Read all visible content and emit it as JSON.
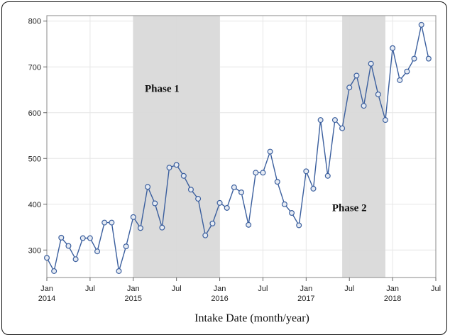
{
  "chart_data": {
    "type": "line",
    "xlabel": "Intake Date (month/year)",
    "ylabel": "",
    "ylim": [
      240,
      812
    ],
    "y_ticks": [
      300,
      400,
      500,
      600,
      700,
      800
    ],
    "x_start": "2014-01",
    "x_end": "2018-07",
    "x_ticks": [
      {
        "date": "2014-01",
        "label": "Jan",
        "year": "2014"
      },
      {
        "date": "2014-07",
        "label": "Jul",
        "year": ""
      },
      {
        "date": "2015-01",
        "label": "Jan",
        "year": "2015"
      },
      {
        "date": "2015-07",
        "label": "Jul",
        "year": ""
      },
      {
        "date": "2016-01",
        "label": "Jan",
        "year": "2016"
      },
      {
        "date": "2016-07",
        "label": "Jul",
        "year": ""
      },
      {
        "date": "2017-01",
        "label": "Jan",
        "year": "2017"
      },
      {
        "date": "2017-07",
        "label": "Jul",
        "year": ""
      },
      {
        "date": "2018-01",
        "label": "Jan",
        "year": "2018"
      },
      {
        "date": "2018-07",
        "label": "Jul",
        "year": ""
      }
    ],
    "grid": true,
    "series": [
      {
        "color": "#3b5f9e",
        "points": [
          {
            "x": "2014-01",
            "y": 283
          },
          {
            "x": "2014-02",
            "y": 254
          },
          {
            "x": "2014-03",
            "y": 327
          },
          {
            "x": "2014-04",
            "y": 309
          },
          {
            "x": "2014-05",
            "y": 280
          },
          {
            "x": "2014-06",
            "y": 326
          },
          {
            "x": "2014-07",
            "y": 326
          },
          {
            "x": "2014-08",
            "y": 297
          },
          {
            "x": "2014-09",
            "y": 360
          },
          {
            "x": "2014-10",
            "y": 360
          },
          {
            "x": "2014-11",
            "y": 254
          },
          {
            "x": "2014-12",
            "y": 308
          },
          {
            "x": "2015-01",
            "y": 372
          },
          {
            "x": "2015-02",
            "y": 348
          },
          {
            "x": "2015-03",
            "y": 438
          },
          {
            "x": "2015-04",
            "y": 402
          },
          {
            "x": "2015-05",
            "y": 349
          },
          {
            "x": "2015-06",
            "y": 480
          },
          {
            "x": "2015-07",
            "y": 486
          },
          {
            "x": "2015-08",
            "y": 462
          },
          {
            "x": "2015-09",
            "y": 432
          },
          {
            "x": "2015-10",
            "y": 412
          },
          {
            "x": "2015-11",
            "y": 332
          },
          {
            "x": "2015-12",
            "y": 358
          },
          {
            "x": "2016-01",
            "y": 403
          },
          {
            "x": "2016-02",
            "y": 392
          },
          {
            "x": "2016-03",
            "y": 437
          },
          {
            "x": "2016-04",
            "y": 426
          },
          {
            "x": "2016-05",
            "y": 355
          },
          {
            "x": "2016-06",
            "y": 469
          },
          {
            "x": "2016-07",
            "y": 469
          },
          {
            "x": "2016-08",
            "y": 515
          },
          {
            "x": "2016-09",
            "y": 449
          },
          {
            "x": "2016-10",
            "y": 400
          },
          {
            "x": "2016-11",
            "y": 381
          },
          {
            "x": "2016-12",
            "y": 354
          },
          {
            "x": "2017-01",
            "y": 472
          },
          {
            "x": "2017-02",
            "y": 434
          },
          {
            "x": "2017-03",
            "y": 584
          },
          {
            "x": "2017-04",
            "y": 462
          },
          {
            "x": "2017-05",
            "y": 584
          },
          {
            "x": "2017-06",
            "y": 566
          },
          {
            "x": "2017-07",
            "y": 655
          },
          {
            "x": "2017-08",
            "y": 681
          },
          {
            "x": "2017-09",
            "y": 615
          },
          {
            "x": "2017-10",
            "y": 707
          },
          {
            "x": "2017-11",
            "y": 640
          },
          {
            "x": "2017-12",
            "y": 584
          },
          {
            "x": "2018-01",
            "y": 741
          },
          {
            "x": "2018-02",
            "y": 671
          },
          {
            "x": "2018-03",
            "y": 690
          },
          {
            "x": "2018-04",
            "y": 718
          },
          {
            "x": "2018-05",
            "y": 792
          },
          {
            "x": "2018-06",
            "y": 718
          }
        ]
      }
    ],
    "bands": [
      {
        "label": "Phase 1",
        "start": "2015-01",
        "end": "2016-01",
        "label_date": "2015-05",
        "label_y": 645
      },
      {
        "label": "Phase 2",
        "start": "2017-06",
        "end": "2017-12",
        "label_date": "2017-07",
        "label_y": 385
      }
    ],
    "band_color": "#d9d9d9"
  }
}
